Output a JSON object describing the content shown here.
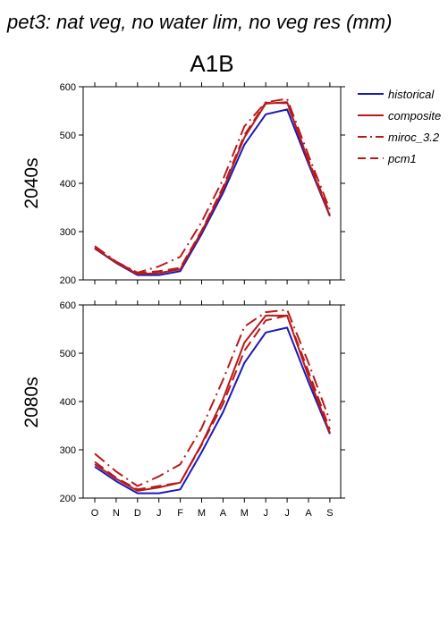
{
  "figure_title": "pet3: nat veg, no water lim, no veg res (mm)",
  "chart_data": {
    "type": "line",
    "scenario_title": "A1B",
    "x_categories": [
      "O",
      "N",
      "D",
      "J",
      "F",
      "M",
      "A",
      "M",
      "J",
      "J",
      "A",
      "S"
    ],
    "legend_position": "right",
    "legend": [
      {
        "name": "historical",
        "color": "#1a1ab8",
        "dash": "solid"
      },
      {
        "name": "composite",
        "color": "#b81a1a",
        "dash": "solid"
      },
      {
        "name": "miroc_3.2",
        "color": "#b81a1a",
        "dash": "dashdot"
      },
      {
        "name": "pcm1",
        "color": "#b81a1a",
        "dash": "dash"
      }
    ],
    "panels": [
      {
        "row_label": "2040s",
        "ylim": [
          200,
          600
        ],
        "yticks": [
          200,
          300,
          400,
          500,
          600
        ],
        "series": [
          {
            "name": "historical",
            "values": [
              265,
              235,
              210,
              210,
              218,
              295,
              380,
              480,
              543,
              553,
              440,
              332
            ]
          },
          {
            "name": "composite",
            "values": [
              266,
              236,
              212,
              214,
              222,
              300,
              387,
              495,
              565,
              568,
              445,
              333
            ]
          },
          {
            "name": "miroc_3.2",
            "values": [
              270,
              238,
              215,
              228,
              248,
              320,
              408,
              518,
              568,
              575,
              458,
              345
            ]
          },
          {
            "name": "pcm1",
            "values": [
              267,
              237,
              214,
              218,
              225,
              302,
              392,
              500,
              567,
              566,
              448,
              338
            ]
          }
        ]
      },
      {
        "row_label": "2080s",
        "ylim": [
          200,
          600
        ],
        "yticks": [
          200,
          300,
          400,
          500,
          600
        ],
        "series": [
          {
            "name": "historical",
            "values": [
              265,
              235,
              210,
              210,
              218,
              295,
              378,
              480,
              543,
              553,
              440,
              333
            ]
          },
          {
            "name": "composite",
            "values": [
              270,
              240,
              215,
              222,
              232,
              312,
              405,
              522,
              578,
              578,
              452,
              335
            ]
          },
          {
            "name": "miroc_3.2",
            "values": [
              292,
              255,
              225,
              245,
              270,
              345,
              445,
              555,
              585,
              590,
              480,
              360
            ]
          },
          {
            "name": "pcm1",
            "values": [
              275,
              242,
              218,
              225,
              232,
              310,
              395,
              505,
              568,
              578,
              462,
              342
            ]
          }
        ]
      }
    ]
  }
}
